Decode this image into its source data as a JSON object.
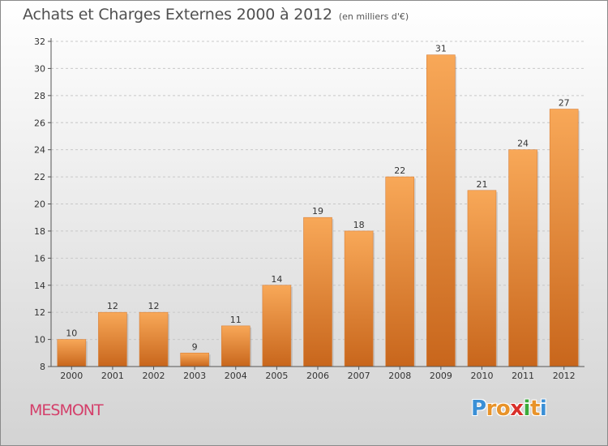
{
  "header": {
    "title": "Achats et Charges Externes 2000 à 2012",
    "subtitle": "(en milliers d'€)"
  },
  "footer": {
    "commune": "MESMONT",
    "logo_letters": [
      "P",
      "r",
      "o",
      "x",
      "i",
      "t",
      "i"
    ],
    "logo_colors": [
      "#3a8fd6",
      "#e8932a",
      "#e8932a",
      "#d9302b",
      "#3aaa3a",
      "#e8932a",
      "#3a8fd6"
    ]
  },
  "colors": {
    "bar_top": "#f8a858",
    "bar_bottom": "#c8661c",
    "axis": "#555555",
    "grid": "#c8c8c8",
    "title": "#505050",
    "commune": "#d43f6a"
  },
  "chart_data": {
    "type": "bar",
    "categories": [
      "2000",
      "2001",
      "2002",
      "2003",
      "2004",
      "2005",
      "2006",
      "2007",
      "2008",
      "2009",
      "2010",
      "2011",
      "2012"
    ],
    "values": [
      10,
      12,
      12,
      9,
      11,
      14,
      19,
      18,
      22,
      31,
      21,
      24,
      27
    ],
    "ylim": [
      8,
      32
    ],
    "yticks": [
      8,
      10,
      12,
      14,
      16,
      18,
      20,
      22,
      24,
      26,
      28,
      30,
      32
    ],
    "grid": true,
    "legend": "none"
  }
}
